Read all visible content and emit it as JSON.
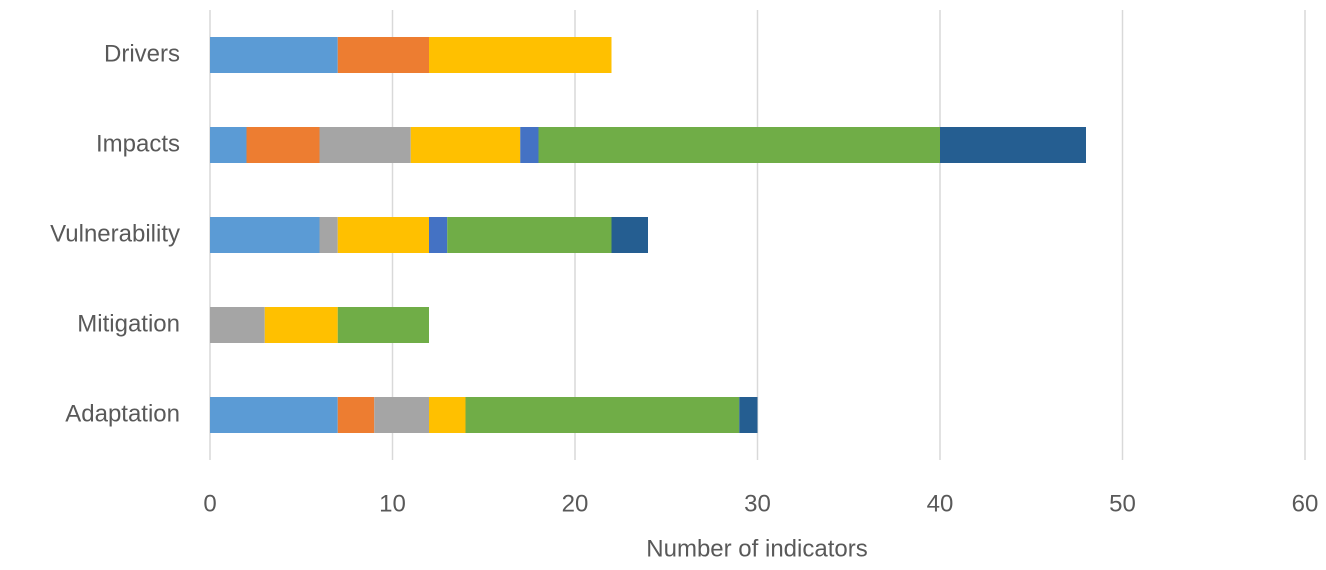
{
  "chart_data": {
    "type": "stacked_barh",
    "xlabel": "Number of indicators",
    "categories": [
      "Drivers",
      "Impacts",
      "Vulnerability",
      "Mitigation",
      "Adaptation"
    ],
    "series": [
      {
        "color": "#5b9bd5",
        "values": [
          7,
          2,
          6,
          0,
          7
        ]
      },
      {
        "color": "#ed7d31",
        "values": [
          5,
          4,
          0,
          0,
          2
        ]
      },
      {
        "color": "#a5a5a5",
        "values": [
          0,
          5,
          1,
          3,
          3
        ]
      },
      {
        "color": "#ffc000",
        "values": [
          10,
          6,
          5,
          4,
          2
        ]
      },
      {
        "color": "#4472c4",
        "values": [
          0,
          1,
          1,
          0,
          0
        ]
      },
      {
        "color": "#70ad47",
        "values": [
          0,
          22,
          9,
          5,
          15
        ]
      },
      {
        "color": "#255e91",
        "values": [
          0,
          8,
          2,
          0,
          1
        ]
      }
    ],
    "xlim": [
      0,
      60
    ],
    "xticks": [
      0,
      10,
      20,
      30,
      40,
      50,
      60
    ],
    "grid": true
  }
}
